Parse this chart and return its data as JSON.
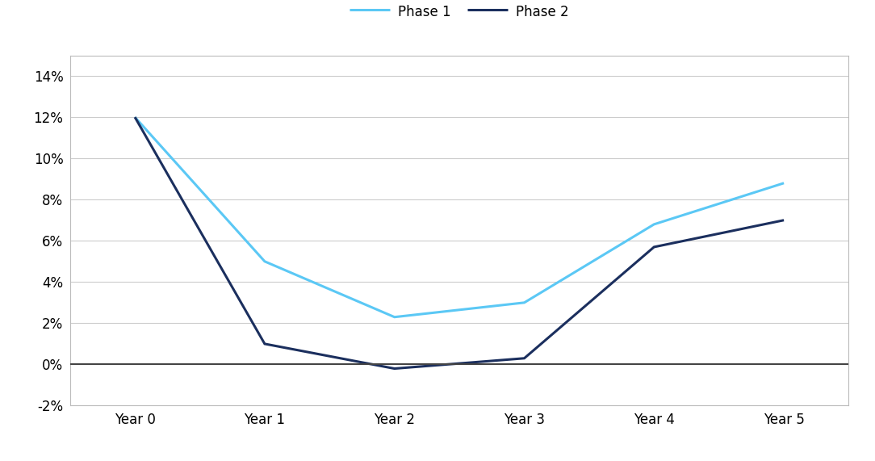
{
  "x_labels": [
    "Year 0",
    "Year 1",
    "Year 2",
    "Year 3",
    "Year 4",
    "Year 5"
  ],
  "x_values": [
    0,
    1,
    2,
    3,
    4,
    5
  ],
  "phase1_values": [
    0.12,
    0.05,
    0.023,
    0.03,
    0.068,
    0.088
  ],
  "phase2_values": [
    0.12,
    0.01,
    -0.002,
    0.003,
    0.057,
    0.07
  ],
  "phase1_color": "#5BC8F5",
  "phase2_color": "#1B2F5E",
  "phase1_label": "Phase 1",
  "phase2_label": "Phase 2",
  "ylim": [
    -0.02,
    0.15
  ],
  "yticks": [
    -0.02,
    0.0,
    0.02,
    0.04,
    0.06,
    0.08,
    0.1,
    0.12,
    0.14
  ],
  "line_width": 2.2,
  "background_color": "#ffffff",
  "grid_color": "#cccccc",
  "spine_color": "#bbbbbb",
  "legend_fontsize": 12,
  "tick_fontsize": 12,
  "zero_line_color": "#444444"
}
